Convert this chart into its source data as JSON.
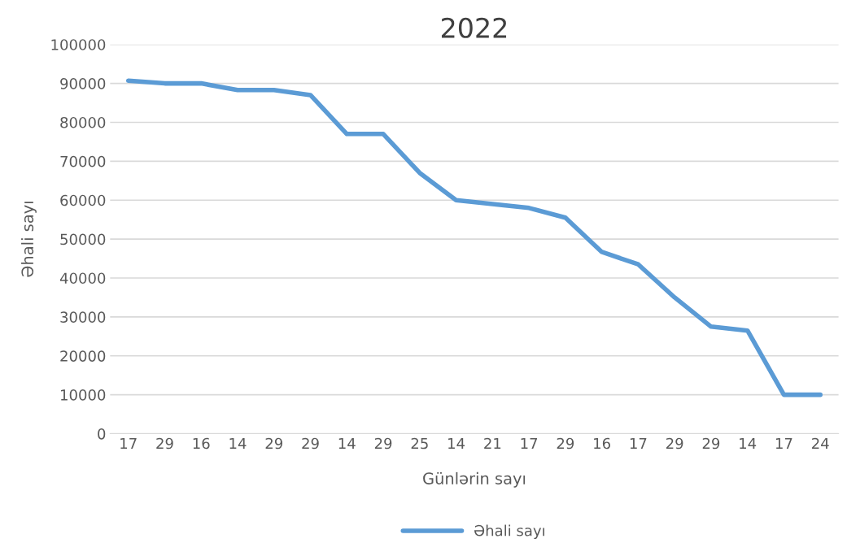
{
  "chart_data": {
    "type": "line",
    "title": "2022",
    "xlabel": "Günlərin sayı",
    "ylabel": "Əhali sayı",
    "categories": [
      "17",
      "29",
      "16",
      "14",
      "29",
      "29",
      "14",
      "29",
      "25",
      "14",
      "21",
      "17",
      "29",
      "16",
      "17",
      "29",
      "29",
      "14",
      "17",
      "24"
    ],
    "series": [
      {
        "name": "Əhali sayı",
        "color": "#5b9bd5",
        "values": [
          90700,
          90000,
          90000,
          88300,
          88300,
          87000,
          77000,
          77000,
          67000,
          60000,
          59000,
          58000,
          55500,
          46700,
          43500,
          35000,
          27500,
          26500,
          10000,
          10000
        ]
      }
    ],
    "ylim": [
      0,
      100000
    ],
    "yticks": [
      0,
      10000,
      20000,
      30000,
      40000,
      50000,
      60000,
      70000,
      80000,
      90000,
      100000
    ],
    "grid": "y",
    "legend": "bottom",
    "marker": "none",
    "line_style": "solid"
  }
}
